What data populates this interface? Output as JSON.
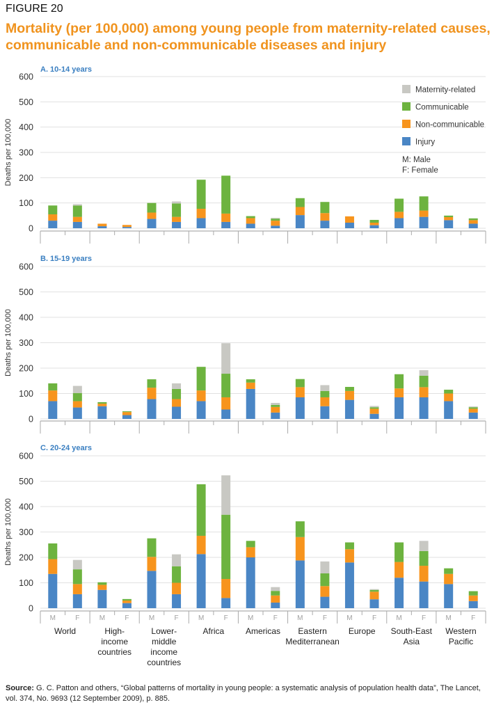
{
  "figure_label": "FIGURE 20",
  "title": "Mortality (per 100,000) among young people from maternity-related causes, communicable and non-communicable diseases and injury",
  "source_label": "Source:",
  "source_text": "G. C. Patton and others, “Global patterns of mortality in young people: a systematic analysis of population health data”, The Lancet, vol. 374, No. 9693 (12 September 2009), p. 885.",
  "colors": {
    "maternity": "#c8c8c3",
    "communicable": "#6db33f",
    "noncommunicable": "#f7941d",
    "injury": "#4a86c5",
    "panel_title": "#3a7fc1"
  },
  "legend": {
    "items": [
      {
        "key": "maternity",
        "label": "Maternity-related"
      },
      {
        "key": "communicable",
        "label": "Communicable"
      },
      {
        "key": "noncommunicable",
        "label": "Non-communicable"
      },
      {
        "key": "injury",
        "label": "Injury"
      }
    ],
    "notes": [
      "M: Male",
      "F: Female"
    ]
  },
  "chart_data": {
    "type": "bar",
    "stacked": true,
    "ylabel": "Deaths per 100,000",
    "ylim": [
      0,
      600
    ],
    "yticks": [
      0,
      100,
      200,
      300,
      400,
      500,
      600
    ],
    "sex_labels": [
      "M",
      "F"
    ],
    "groups": [
      [
        "World"
      ],
      [
        "High-",
        "income",
        "countries"
      ],
      [
        "Lower-",
        "middle",
        "income",
        "countries"
      ],
      [
        "Africa"
      ],
      [
        "Americas"
      ],
      [
        "Eastern",
        "Mediterranean"
      ],
      [
        "Europe"
      ],
      [
        "South-East",
        "Asia"
      ],
      [
        "Western",
        "Pacific"
      ]
    ],
    "stack_order": [
      "injury",
      "noncommunicable",
      "communicable",
      "maternity"
    ],
    "panels": [
      {
        "title": "A. 10-14 years",
        "bars": [
          [
            30,
            25,
            35,
            0
          ],
          [
            25,
            20,
            45,
            5
          ],
          [
            8,
            10,
            0,
            0
          ],
          [
            5,
            8,
            0,
            0
          ],
          [
            37,
            25,
            38,
            0
          ],
          [
            25,
            20,
            53,
            8
          ],
          [
            40,
            37,
            115,
            0
          ],
          [
            25,
            33,
            150,
            0
          ],
          [
            18,
            22,
            8,
            0
          ],
          [
            10,
            20,
            8,
            3
          ],
          [
            52,
            32,
            35,
            0
          ],
          [
            30,
            30,
            44,
            0
          ],
          [
            22,
            25,
            0,
            0
          ],
          [
            12,
            10,
            11,
            0
          ],
          [
            40,
            25,
            52,
            0
          ],
          [
            45,
            25,
            56,
            0
          ],
          [
            32,
            12,
            6,
            0
          ],
          [
            18,
            14,
            7,
            0
          ]
        ]
      },
      {
        "title": "B. 15-19 years",
        "bars": [
          [
            70,
            42,
            28,
            0
          ],
          [
            45,
            25,
            32,
            28
          ],
          [
            50,
            10,
            6,
            0
          ],
          [
            15,
            12,
            3,
            0
          ],
          [
            78,
            45,
            33,
            0
          ],
          [
            48,
            30,
            40,
            22
          ],
          [
            70,
            42,
            93,
            0
          ],
          [
            37,
            48,
            93,
            120
          ],
          [
            118,
            25,
            13,
            0
          ],
          [
            25,
            22,
            8,
            8
          ],
          [
            85,
            40,
            32,
            0
          ],
          [
            50,
            35,
            25,
            23
          ],
          [
            75,
            35,
            16,
            0
          ],
          [
            20,
            20,
            6,
            5
          ],
          [
            85,
            35,
            56,
            0
          ],
          [
            85,
            40,
            45,
            22
          ],
          [
            70,
            30,
            15,
            0
          ],
          [
            25,
            15,
            6,
            3
          ]
        ]
      },
      {
        "title": "C. 20-24 years",
        "bars": [
          [
            135,
            58,
            62,
            0
          ],
          [
            55,
            40,
            58,
            37
          ],
          [
            72,
            20,
            10,
            0
          ],
          [
            20,
            10,
            6,
            0
          ],
          [
            147,
            55,
            73,
            0
          ],
          [
            55,
            45,
            65,
            47
          ],
          [
            213,
            72,
            203,
            0
          ],
          [
            40,
            75,
            253,
            155
          ],
          [
            200,
            40,
            25,
            0
          ],
          [
            22,
            28,
            18,
            15
          ],
          [
            188,
            92,
            62,
            0
          ],
          [
            45,
            42,
            50,
            47
          ],
          [
            180,
            52,
            27,
            0
          ],
          [
            35,
            30,
            7,
            3
          ],
          [
            120,
            62,
            77,
            0
          ],
          [
            105,
            62,
            58,
            40
          ],
          [
            95,
            40,
            22,
            0
          ],
          [
            28,
            22,
            17,
            0
          ]
        ]
      }
    ]
  }
}
